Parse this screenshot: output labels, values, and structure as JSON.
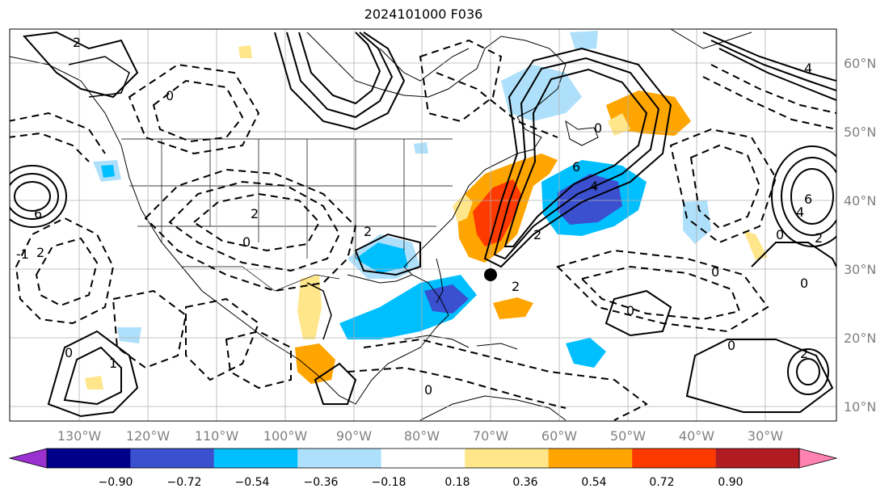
{
  "title": "2024101000 F036",
  "longitude_labels": [
    "130°W",
    "120°W",
    "110°W",
    "100°W",
    "90°W",
    "80°W",
    "70°W",
    "60°W",
    "50°W",
    "40°W",
    "30°W"
  ],
  "latitude_labels": [
    "60°N",
    "50°N",
    "40°N",
    "30°N",
    "20°N",
    "10°N"
  ],
  "colorbar": {
    "tick_labels": [
      "−0.90",
      "−0.72",
      "−0.54",
      "−0.36",
      "−0.18",
      "0.18",
      "0.36",
      "0.54",
      "0.72",
      "0.90"
    ],
    "colors": [
      "#9b30d0",
      "#00008b",
      "#3a50cf",
      "#00bfff",
      "#aee0fb",
      "#ffffff",
      "#ffe68a",
      "#ffa500",
      "#ff3a00",
      "#b01c22",
      "#ff82b0"
    ]
  },
  "contour_labels": [
    "0",
    "2",
    "4",
    "6",
    "-2",
    "-1",
    "1"
  ],
  "colors": {
    "land_outline": "#000000",
    "grid": "#b0b0b0",
    "marker": "#000000"
  }
}
